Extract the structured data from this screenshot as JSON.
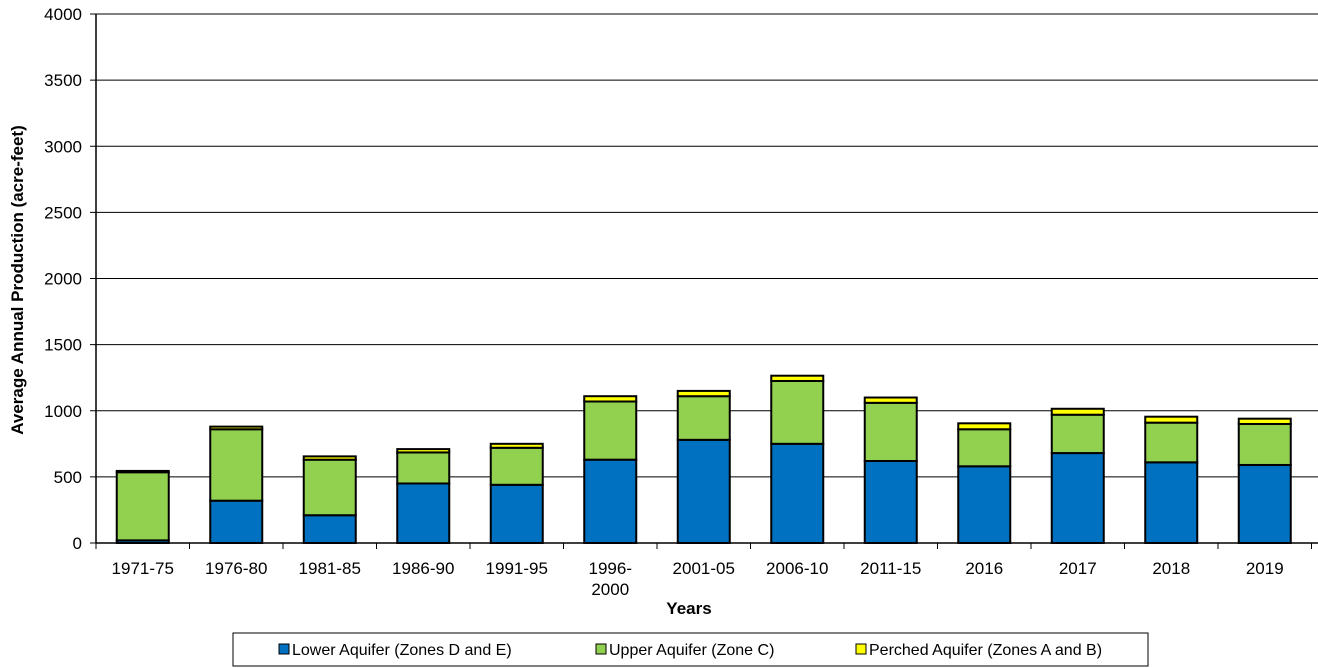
{
  "chart_data": {
    "type": "bar",
    "stacked": true,
    "title": "",
    "xlabel": "Years",
    "ylabel": "Average Annual Production (acre-feet)",
    "ylim": [
      0,
      4000
    ],
    "yticks": [
      0,
      500,
      1000,
      1500,
      2000,
      2500,
      3000,
      3500,
      4000
    ],
    "grid": true,
    "legend_position": "bottom",
    "categories": [
      [
        "1971-75"
      ],
      [
        "1976-80"
      ],
      [
        "1981-85"
      ],
      [
        "1986-90"
      ],
      [
        "1991-95"
      ],
      [
        "1996-",
        "2000"
      ],
      [
        "2001-05"
      ],
      [
        "2006-10"
      ],
      [
        "2011-15"
      ],
      [
        "2016"
      ],
      [
        "2017"
      ],
      [
        "2018"
      ],
      [
        "2019"
      ]
    ],
    "series": [
      {
        "name": "Lower Aquifer (Zones D and E)",
        "color": "#0070c0",
        "values": [
          20,
          320,
          210,
          450,
          440,
          630,
          780,
          750,
          620,
          580,
          680,
          610,
          590
        ]
      },
      {
        "name": "Upper Aquifer (Zone C)",
        "color": "#92d050",
        "values": [
          515,
          540,
          420,
          235,
          280,
          440,
          330,
          475,
          440,
          280,
          290,
          300,
          310
        ]
      },
      {
        "name": "Perched Aquifer (Zones A and B)",
        "color": "#ffff00",
        "values": [
          10,
          20,
          25,
          25,
          30,
          40,
          40,
          40,
          40,
          45,
          45,
          45,
          40
        ]
      }
    ]
  }
}
